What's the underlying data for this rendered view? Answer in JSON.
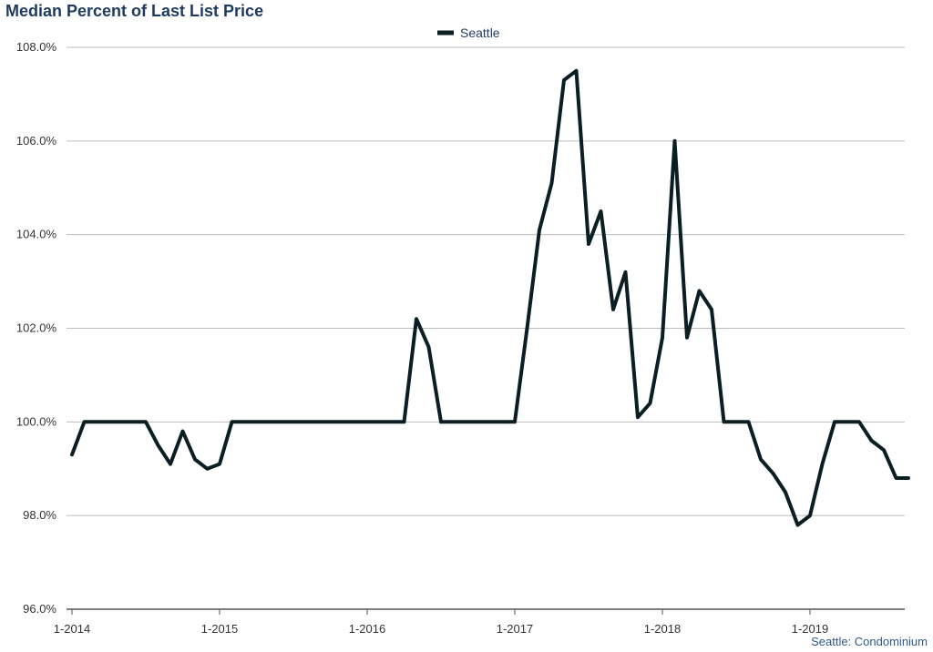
{
  "title": "Median Percent of Last List Price",
  "source_note": "Seattle: Condominium",
  "colors": {
    "line": "#0a1e24",
    "grid": "#bcbcbc",
    "title": "#1f3a5f"
  },
  "chart_data": {
    "type": "line",
    "title": "Median Percent of Last List Price",
    "xlabel": "",
    "ylabel": "",
    "ylim": [
      96.0,
      108.0
    ],
    "y_ticks": [
      "96.0%",
      "98.0%",
      "100.0%",
      "102.0%",
      "104.0%",
      "106.0%",
      "108.0%"
    ],
    "y_tick_values": [
      96,
      98,
      100,
      102,
      104,
      106,
      108
    ],
    "x_tick_labels": [
      "1-2014",
      "1-2015",
      "1-2016",
      "1-2017",
      "1-2018",
      "1-2019"
    ],
    "x_start": "1-2014",
    "x_end": "9-2019",
    "grid": true,
    "legend_position": "top-center",
    "series": [
      {
        "name": "Seattle",
        "color": "#0a1e24",
        "x": [
          "1-2014",
          "2-2014",
          "3-2014",
          "4-2014",
          "5-2014",
          "6-2014",
          "7-2014",
          "8-2014",
          "9-2014",
          "10-2014",
          "11-2014",
          "12-2014",
          "1-2015",
          "2-2015",
          "3-2015",
          "4-2015",
          "5-2015",
          "6-2015",
          "7-2015",
          "8-2015",
          "9-2015",
          "10-2015",
          "11-2015",
          "12-2015",
          "1-2016",
          "2-2016",
          "3-2016",
          "4-2016",
          "5-2016",
          "6-2016",
          "7-2016",
          "8-2016",
          "9-2016",
          "10-2016",
          "11-2016",
          "12-2016",
          "1-2017",
          "2-2017",
          "3-2017",
          "4-2017",
          "5-2017",
          "6-2017",
          "7-2017",
          "8-2017",
          "9-2017",
          "10-2017",
          "11-2017",
          "12-2017",
          "1-2018",
          "2-2018",
          "3-2018",
          "4-2018",
          "5-2018",
          "6-2018",
          "7-2018",
          "8-2018",
          "9-2018",
          "10-2018",
          "11-2018",
          "12-2018",
          "1-2019",
          "2-2019",
          "3-2019",
          "4-2019",
          "5-2019",
          "6-2019",
          "7-2019",
          "8-2019",
          "9-2019"
        ],
        "values": [
          99.3,
          100.0,
          100.0,
          100.0,
          100.0,
          100.0,
          100.0,
          99.5,
          99.1,
          99.8,
          99.2,
          99.0,
          99.1,
          100.0,
          100.0,
          100.0,
          100.0,
          100.0,
          100.0,
          100.0,
          100.0,
          100.0,
          100.0,
          100.0,
          100.0,
          100.0,
          100.0,
          100.0,
          102.2,
          101.6,
          100.0,
          100.0,
          100.0,
          100.0,
          100.0,
          100.0,
          100.0,
          102.0,
          104.1,
          105.1,
          107.3,
          107.5,
          103.8,
          104.5,
          102.4,
          103.2,
          100.1,
          100.4,
          101.8,
          106.0,
          101.8,
          102.8,
          102.4,
          100.0,
          100.0,
          100.0,
          99.2,
          98.9,
          98.5,
          97.8,
          98.0,
          99.1,
          100.0,
          100.0,
          100.0,
          99.6,
          99.4,
          98.8,
          98.8
        ]
      }
    ]
  }
}
